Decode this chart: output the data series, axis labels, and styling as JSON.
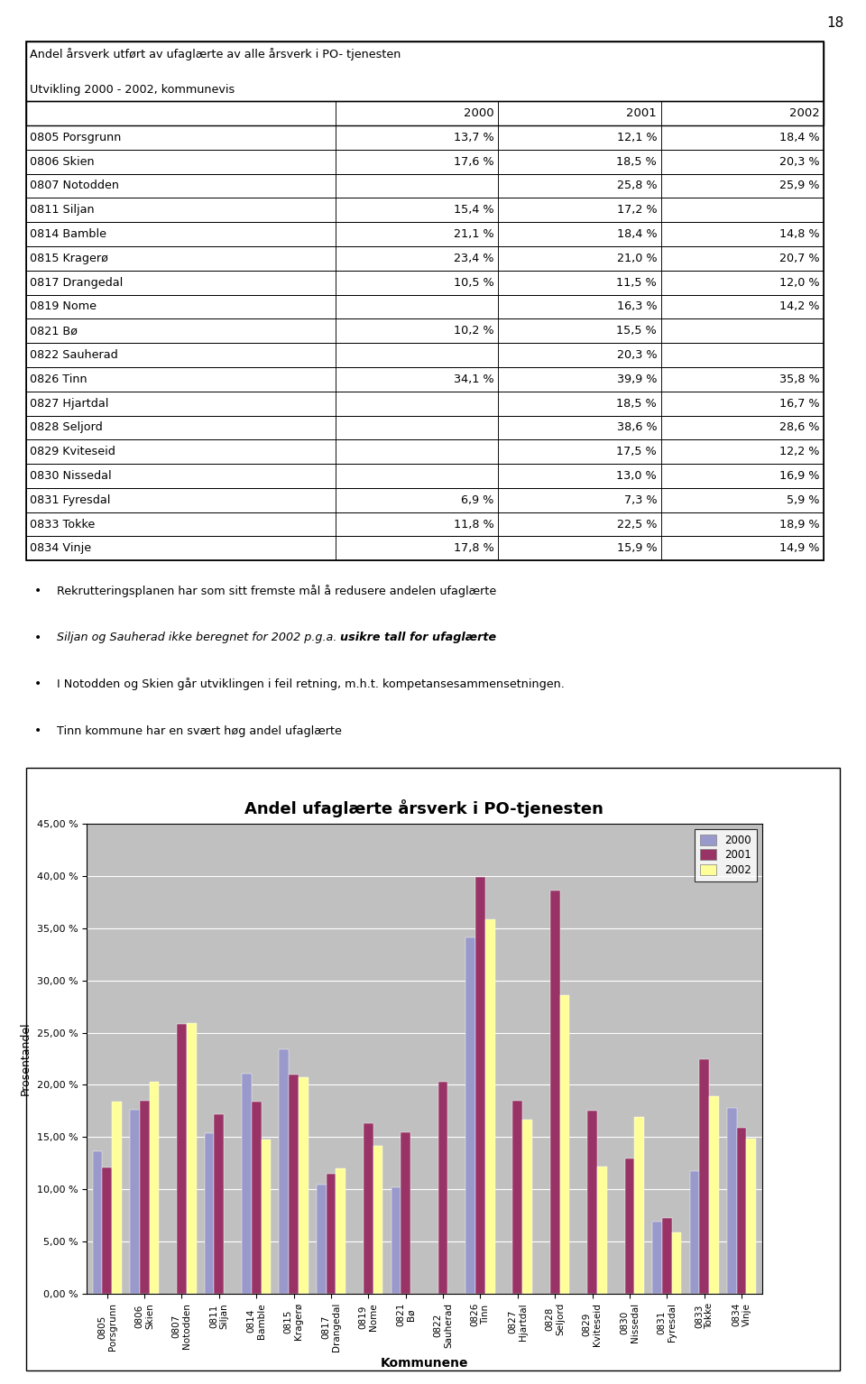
{
  "table_title_line1": "Andel årsverk utført av ufaglærte av alle årsverk i PO- tjenesten",
  "table_title_line2": "Utvikling 2000 - 2002, kommunevis",
  "table_headers": [
    "",
    "2000",
    "2001",
    "2002"
  ],
  "table_rows": [
    [
      "0805 Porsgrunn",
      "13,7 %",
      "12,1 %",
      "18,4 %"
    ],
    [
      "0806 Skien",
      "17,6 %",
      "18,5 %",
      "20,3 %"
    ],
    [
      "0807 Notodden",
      "",
      "25,8 %",
      "25,9 %"
    ],
    [
      "0811 Siljan",
      "15,4 %",
      "17,2 %",
      ""
    ],
    [
      "0814 Bamble",
      "21,1 %",
      "18,4 %",
      "14,8 %"
    ],
    [
      "0815 Kragerø",
      "23,4 %",
      "21,0 %",
      "20,7 %"
    ],
    [
      "0817 Drangedal",
      "10,5 %",
      "11,5 %",
      "12,0 %"
    ],
    [
      "0819 Nome",
      "",
      "16,3 %",
      "14,2 %"
    ],
    [
      "0821 Bø",
      "10,2 %",
      "15,5 %",
      ""
    ],
    [
      "0822 Sauherad",
      "",
      "20,3 %",
      ""
    ],
    [
      "0826 Tinn",
      "34,1 %",
      "39,9 %",
      "35,8 %"
    ],
    [
      "0827 Hjartdal",
      "",
      "18,5 %",
      "16,7 %"
    ],
    [
      "0828 Seljord",
      "",
      "38,6 %",
      "28,6 %"
    ],
    [
      "0829 Kviteseid",
      "",
      "17,5 %",
      "12,2 %"
    ],
    [
      "0830 Nissedal",
      "",
      "13,0 %",
      "16,9 %"
    ],
    [
      "0831 Fyresdal",
      "6,9 %",
      "7,3 %",
      "5,9 %"
    ],
    [
      "0833 Tokke",
      "11,8 %",
      "22,5 %",
      "18,9 %"
    ],
    [
      "0834 Vinje",
      "17,8 %",
      "15,9 %",
      "14,9 %"
    ]
  ],
  "bullet_points": [
    "Rekrutteringsplanen har som sitt fremste mål å redusere andelen ufaglærte",
    "Siljan og Sauherad ikke beregnet for 2002 p.g.a. usikre tall for ufaglærte",
    "I Notodden og Skien går utviklingen i feil retning, m.h.t. kompetansesammensetningen.",
    "Tinn kommune har en svært høg andel ufaglærte"
  ],
  "bullet_bold_words": [
    "",
    "usikre tall for ufaglærte",
    "",
    ""
  ],
  "chart_title": "Andel ufaglærte årsverk i PO-tjenesten",
  "chart_xlabel": "Kommunene",
  "chart_ylabel": "Prosentandel",
  "chart_categories": [
    "0805\nPorsgrunn",
    "0806\nSkien",
    "0807\nNotodden",
    "0811\nSiljan",
    "0814\nBamble",
    "0815\nKragerø",
    "0817\nDrangedal",
    "0819\nNome",
    "0821\nBø",
    "0822\nSauherad",
    "0826\nTinn",
    "0827\nHjartdal",
    "0828\nSeljord",
    "0829\nKviteseid",
    "0830\nNissedal",
    "0831\nFyresdal",
    "0833\nTokke",
    "0834\nVinje"
  ],
  "data_2000": [
    13.7,
    17.6,
    0,
    15.4,
    21.1,
    23.4,
    10.5,
    0,
    10.2,
    0,
    34.1,
    0,
    0,
    0,
    0,
    6.9,
    11.8,
    17.8
  ],
  "data_2001": [
    12.1,
    18.5,
    25.8,
    17.2,
    18.4,
    21.0,
    11.5,
    16.3,
    15.5,
    20.3,
    39.9,
    18.5,
    38.6,
    17.5,
    13.0,
    7.3,
    22.5,
    15.9
  ],
  "data_2002": [
    18.4,
    20.3,
    25.9,
    0,
    14.8,
    20.7,
    12.0,
    14.2,
    0,
    0,
    35.8,
    16.7,
    28.6,
    12.2,
    16.9,
    5.9,
    18.9,
    14.9
  ],
  "color_2000": "#9999CC",
  "color_2001": "#993366",
  "color_2002": "#FFFF99",
  "page_number": "18",
  "chart_bg_color": "#C0C0C0",
  "yticks": [
    0,
    5,
    10,
    15,
    20,
    25,
    30,
    35,
    40,
    45
  ],
  "ytick_labels": [
    "0,00 %",
    "5,00 %",
    "10,00 %",
    "15,00 %",
    "20,00 %",
    "25,00 %",
    "30,00 %",
    "35,00 %",
    "40,00 %",
    "45,00 %"
  ]
}
